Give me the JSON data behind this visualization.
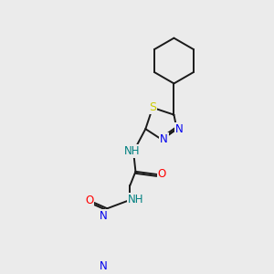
{
  "background_color": "#ebebeb",
  "bond_color": "#1a1a1a",
  "atom_colors": {
    "N": "#0000ee",
    "O": "#ff0000",
    "S": "#cccc00",
    "H_N": "#008080",
    "C": "#1a1a1a"
  },
  "figsize": [
    3.0,
    3.0
  ],
  "dpi": 100,
  "lw": 1.4,
  "fs": 8.5
}
